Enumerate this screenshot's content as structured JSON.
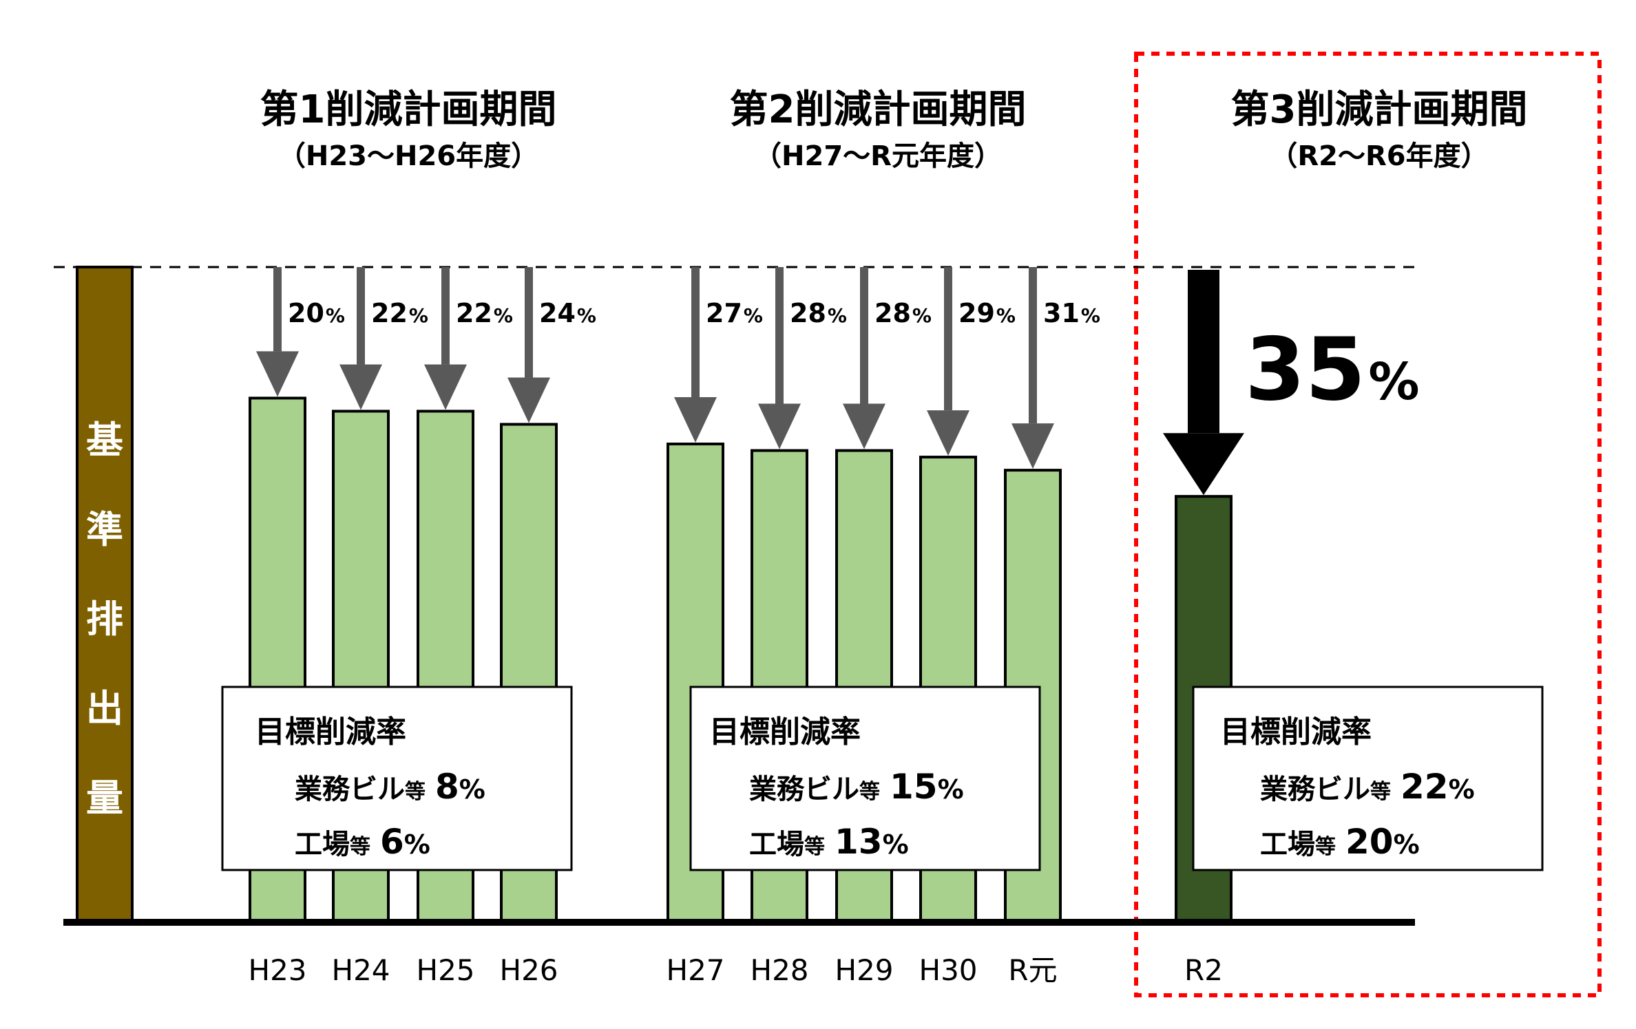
{
  "chart_data": {
    "type": "bar",
    "baseline_label": "基準排出量",
    "categories": [
      "H23",
      "H24",
      "H25",
      "H26",
      "H27",
      "H28",
      "H29",
      "H30",
      "R元",
      "R2"
    ],
    "reduction_percent": [
      20,
      22,
      22,
      24,
      27,
      28,
      28,
      29,
      31,
      35
    ],
    "percent_unit": "%",
    "baseline_value": 100,
    "ylim": [
      0,
      100
    ],
    "colors": {
      "baseline": "#7F6000",
      "bar": "#A9D18E",
      "bar_highlight": "#375623",
      "arrow": "#595959",
      "highlight_arrow": "#000000",
      "highlight_border": "#FF0000"
    },
    "periods": [
      {
        "title": "第1削減計画期間",
        "subtitle": "（H23～H26年度）",
        "target_heading": "目標削減率",
        "targets": [
          {
            "category": "業務ビル",
            "suffix": "等",
            "value": "8",
            "unit": "%"
          },
          {
            "category": "工場",
            "suffix": "等",
            "value": "6",
            "unit": "%"
          }
        ]
      },
      {
        "title": "第2削減計画期間",
        "subtitle": "（H27～R元年度）",
        "target_heading": "目標削減率",
        "targets": [
          {
            "category": "業務ビル",
            "suffix": "等",
            "value": "15",
            "unit": "%"
          },
          {
            "category": "工場",
            "suffix": "等",
            "value": "13",
            "unit": "%"
          }
        ]
      },
      {
        "title": "第3削減計画期間",
        "subtitle": "（R2～R6年度）",
        "target_heading": "目標削減率",
        "targets": [
          {
            "category": "業務ビル",
            "suffix": "等",
            "value": "22",
            "unit": "%"
          },
          {
            "category": "工場",
            "suffix": "等",
            "value": "20",
            "unit": "%"
          }
        ]
      }
    ]
  }
}
